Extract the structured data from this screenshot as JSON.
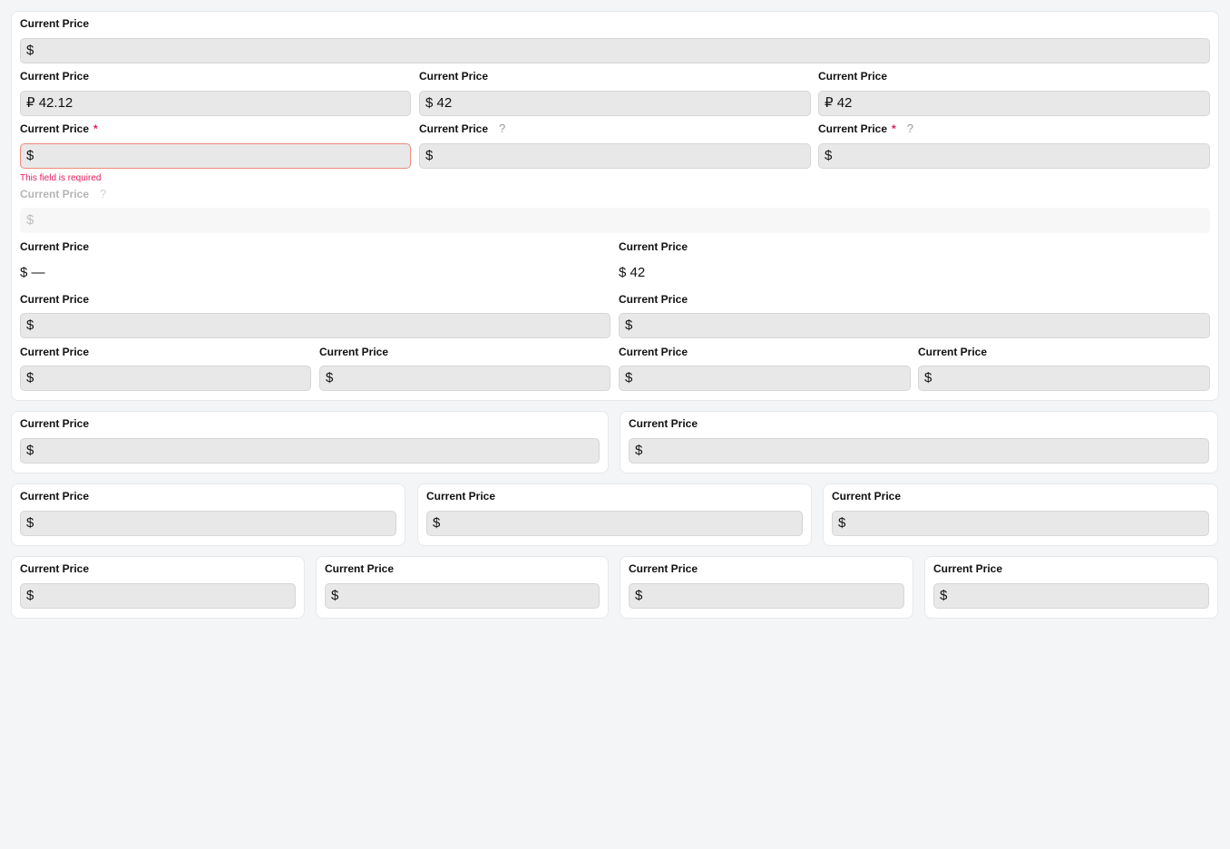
{
  "main_panel": {
    "fields": [
      {
        "label": "Current Price",
        "prefix": "$",
        "value": ""
      },
      {
        "label": "Current Price",
        "prefix": "₽",
        "value": "42.12"
      },
      {
        "label": "Current Price",
        "prefix": "$",
        "value": "42"
      },
      {
        "label": "Current Price",
        "prefix": "₽",
        "value": "42"
      },
      {
        "label": "Current Price",
        "prefix": "$",
        "value": "",
        "required": true,
        "error": "This field is required"
      },
      {
        "label": "Current Price",
        "prefix": "$",
        "value": "",
        "help": "?"
      },
      {
        "label": "Current Price",
        "prefix": "$",
        "value": "",
        "required": true,
        "help": "?"
      },
      {
        "label": "Current Price",
        "prefix": "$",
        "value": "",
        "help": "?",
        "disabled": true
      },
      {
        "label": "Current Price",
        "prefix": "$",
        "value": "—",
        "readonly": true
      },
      {
        "label": "Current Price",
        "prefix": "$",
        "value": "42",
        "readonly": true
      },
      {
        "label": "Current Price",
        "prefix": "$",
        "value": ""
      },
      {
        "label": "Current Price",
        "prefix": "$",
        "value": ""
      },
      {
        "label": "Current Price",
        "prefix": "$",
        "value": ""
      },
      {
        "label": "Current Price",
        "prefix": "$",
        "value": ""
      },
      {
        "label": "Current Price",
        "prefix": "$",
        "value": ""
      },
      {
        "label": "Current Price",
        "prefix": "$",
        "value": ""
      }
    ]
  },
  "card_fields": [
    {
      "label": "Current Price",
      "prefix": "$",
      "value": ""
    },
    {
      "label": "Current Price",
      "prefix": "$",
      "value": ""
    },
    {
      "label": "Current Price",
      "prefix": "$",
      "value": ""
    },
    {
      "label": "Current Price",
      "prefix": "$",
      "value": ""
    },
    {
      "label": "Current Price",
      "prefix": "$",
      "value": ""
    },
    {
      "label": "Current Price",
      "prefix": "$",
      "value": ""
    },
    {
      "label": "Current Price",
      "prefix": "$",
      "value": ""
    },
    {
      "label": "Current Price",
      "prefix": "$",
      "value": ""
    },
    {
      "label": "Current Price",
      "prefix": "$",
      "value": ""
    }
  ],
  "required_marker": "*"
}
